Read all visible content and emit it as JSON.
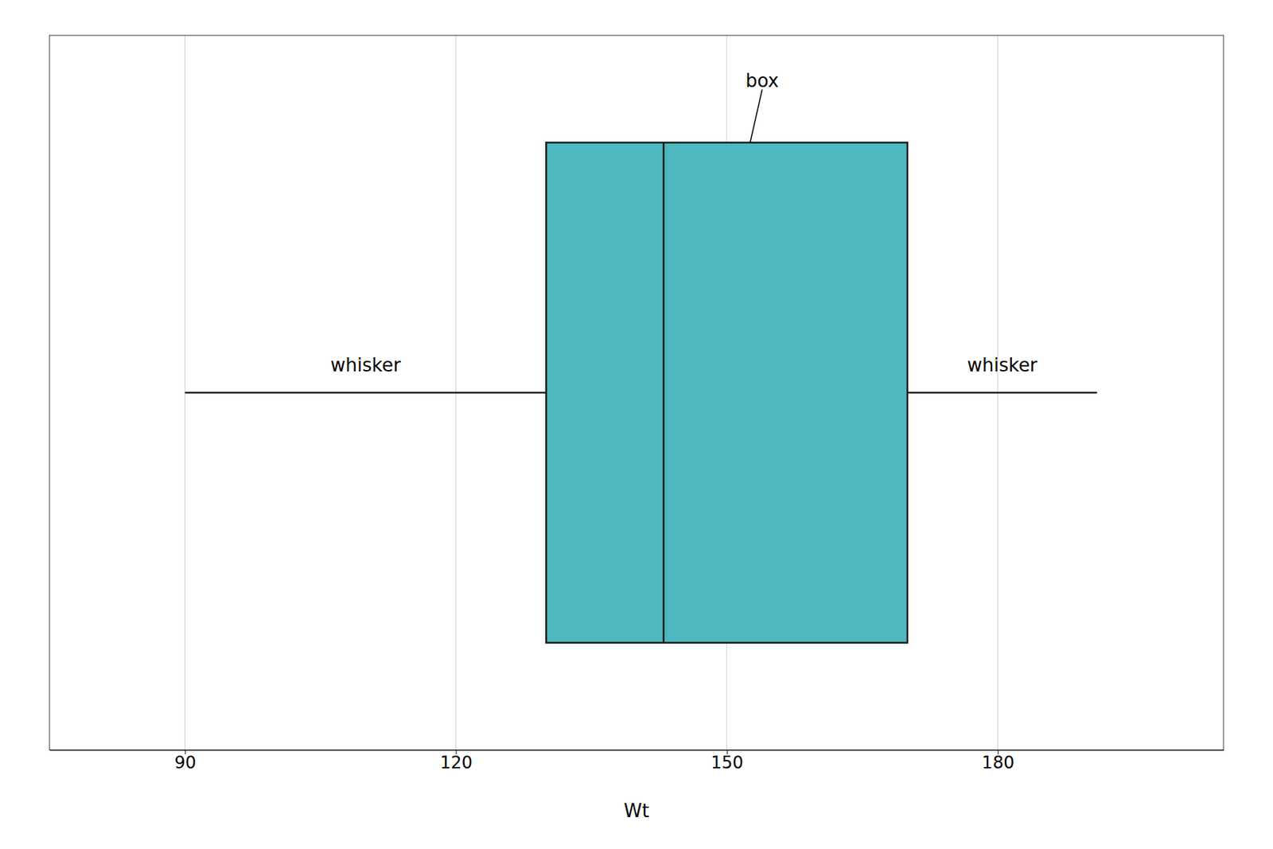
{
  "chart_data": {
    "type": "box",
    "orientation": "horizontal",
    "q1": 130,
    "median": 143,
    "q3": 170,
    "whisker_low": 90,
    "whisker_high": 191,
    "color": "#4DB8C0",
    "xlabel": "Wt",
    "xlim": [
      75,
      205
    ],
    "xticks": [
      90,
      120,
      150,
      180
    ],
    "annotations": [
      "box",
      "whisker",
      "whisker"
    ],
    "grid": true
  }
}
